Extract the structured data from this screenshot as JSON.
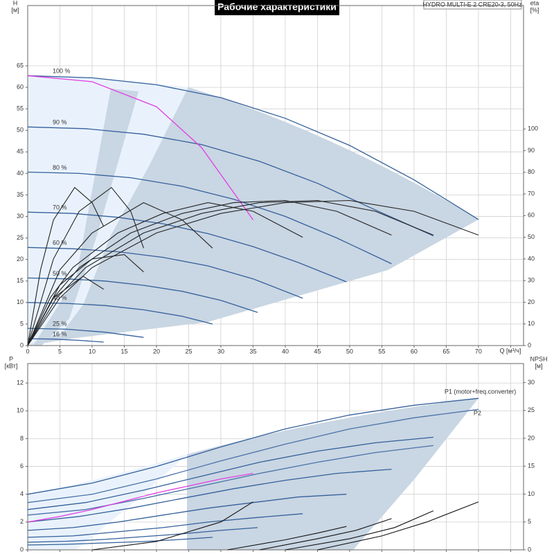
{
  "chart_data": [
    {
      "type": "line",
      "title": "Рабочие характеристики",
      "subtitle": "HYDRO MULTI-E 2 CRE20-3, 50Hz",
      "ylabel": "H",
      "yunit": "[м]",
      "y2label": "eta",
      "y2unit": "[%]",
      "xlabel": "Q [м³/ч]",
      "xlim": [
        0,
        77
      ],
      "xticks": [
        0,
        5,
        10,
        15,
        20,
        25,
        30,
        35,
        40,
        45,
        50,
        55,
        60,
        65,
        70,
        75
      ],
      "xtick_labels": true,
      "ylim": [
        0,
        79
      ],
      "yticks": [
        0,
        5,
        10,
        15,
        20,
        25,
        30,
        35,
        40,
        45,
        50,
        55,
        60,
        65
      ],
      "y2lim": [
        0,
        157
      ],
      "y2ticks": [
        0,
        10,
        20,
        30,
        40,
        50,
        60,
        70,
        80,
        90,
        100
      ],
      "grid": true,
      "series": [
        {
          "name": "100 %",
          "label_at": "start",
          "color": "#34609a",
          "x": [
            0,
            10,
            20,
            30,
            40,
            50,
            60,
            70
          ],
          "values": [
            62.7,
            62.2,
            60.6,
            57.6,
            52.8,
            46.5,
            38.5,
            29.3
          ]
        },
        {
          "name": "90 %",
          "label_at": "start",
          "color": "#34609a",
          "x": [
            0,
            9,
            18,
            27,
            36,
            45,
            54,
            63
          ],
          "values": [
            50.8,
            50.4,
            49.1,
            46.7,
            42.8,
            37.7,
            31.5,
            25.5
          ]
        },
        {
          "name": "80 %",
          "label_at": "start",
          "color": "#34609a",
          "x": [
            0,
            8,
            16,
            24,
            32,
            40,
            48,
            56.5
          ],
          "values": [
            40.3,
            40,
            39,
            37,
            34,
            30,
            25,
            19
          ]
        },
        {
          "name": "70 %",
          "label_at": "start",
          "color": "#34609a",
          "x": [
            0,
            7,
            14,
            21,
            28,
            35,
            42,
            49.5
          ],
          "values": [
            31,
            30.7,
            29.8,
            28.3,
            26,
            23,
            19.3,
            14.8
          ]
        },
        {
          "name": "60 %",
          "label_at": "start",
          "color": "#34609a",
          "x": [
            0,
            7,
            14,
            21,
            28,
            35,
            42.7
          ],
          "values": [
            22.8,
            22.5,
            21.8,
            20.5,
            18.5,
            15.5,
            11
          ]
        },
        {
          "name": "50 %",
          "label_at": "start",
          "color": "#34609a",
          "x": [
            0,
            6,
            12,
            18,
            24,
            30,
            35.7
          ],
          "values": [
            15.7,
            15.5,
            15,
            14,
            12.6,
            10.5,
            7.7
          ]
        },
        {
          "name": "40 %",
          "label_at": "start",
          "color": "#34609a",
          "x": [
            0,
            6,
            12,
            18,
            24,
            28.7
          ],
          "values": [
            10,
            9.8,
            9.3,
            8.3,
            6.8,
            5
          ]
        },
        {
          "name": "25 %",
          "label_at": "start",
          "color": "#34609a",
          "x": [
            0,
            6,
            12,
            18
          ],
          "values": [
            4,
            3.8,
            3.1,
            1.9
          ]
        },
        {
          "name": "16 %",
          "label_at": "start",
          "color": "#34609a",
          "x": [
            0,
            4,
            8,
            11.8
          ],
          "values": [
            1.6,
            1.5,
            1.2,
            0.8
          ]
        },
        {
          "color": "#e23ee2",
          "x": [
            0,
            10,
            20,
            27,
            35
          ],
          "values": [
            62.7,
            61.3,
            55.5,
            46,
            29.2
          ]
        },
        {
          "color": "#222222",
          "axis": "y2",
          "x": [
            0,
            5,
            10,
            20,
            30,
            40,
            50,
            60,
            70
          ],
          "values": [
            0,
            22,
            36,
            52,
            61,
            66,
            67,
            62,
            51
          ]
        },
        {
          "color": "#222222",
          "axis": "y2",
          "x": [
            0,
            4.5,
            9,
            18,
            27,
            36,
            45,
            54,
            63
          ],
          "values": [
            0,
            22,
            36,
            52,
            61,
            66,
            67,
            62,
            51
          ]
        },
        {
          "color": "#222222",
          "axis": "y2",
          "x": [
            0,
            4,
            8,
            16,
            24,
            32,
            40,
            48,
            56.5
          ],
          "values": [
            0,
            22,
            36,
            52,
            61,
            66,
            67,
            62,
            51
          ]
        },
        {
          "color": "#222222",
          "axis": "y2",
          "x": [
            0,
            3.5,
            7,
            14,
            21,
            28,
            35,
            42.7
          ],
          "values": [
            0,
            22,
            36,
            52,
            61,
            66,
            62,
            50
          ]
        },
        {
          "color": "#222222",
          "axis": "y2",
          "x": [
            0,
            5,
            10,
            18,
            24,
            28.7
          ],
          "values": [
            0,
            35,
            52,
            66,
            58,
            45
          ]
        },
        {
          "color": "#222222",
          "axis": "y2",
          "x": [
            0,
            2,
            4,
            7.3,
            10,
            11.8
          ],
          "values": [
            0,
            35,
            58,
            73,
            66,
            55
          ]
        },
        {
          "color": "#222222",
          "axis": "y2",
          "x": [
            0,
            4,
            8,
            13,
            16,
            18
          ],
          "values": [
            0,
            40,
            62,
            73,
            62,
            45
          ]
        },
        {
          "color": "#222222",
          "axis": "y2",
          "x": [
            0,
            5,
            10,
            15,
            18
          ],
          "values": [
            0,
            28,
            40,
            42,
            34
          ]
        },
        {
          "color": "#222222",
          "axis": "y2",
          "x": [
            0,
            4,
            8.6,
            11.8
          ],
          "values": [
            0,
            22,
            32,
            26
          ]
        }
      ]
    },
    {
      "type": "line",
      "ylabel": "P",
      "yunit": "[кВт]",
      "y2label": "NPSH",
      "y2unit": "[м]",
      "xlim": [
        0,
        77
      ],
      "xticks": [
        0,
        5,
        10,
        15,
        20,
        25,
        30,
        35,
        40,
        45,
        50,
        55,
        60,
        65,
        70,
        75
      ],
      "xtick_labels": false,
      "ylim": [
        0,
        13.4
      ],
      "yticks": [
        0,
        2,
        4,
        6,
        8,
        10,
        12
      ],
      "y2lim": [
        0,
        33.4
      ],
      "y2ticks": [
        0,
        5,
        10,
        15,
        20,
        25,
        30
      ],
      "grid": true,
      "series": [
        {
          "name": "P1 (motor+freq.converter)",
          "label_at": "end-above",
          "color": "#34609a",
          "x": [
            0,
            10,
            20,
            30,
            40,
            50,
            60,
            70
          ],
          "values": [
            4,
            4.8,
            6,
            7.4,
            8.7,
            9.7,
            10.4,
            10.9
          ]
        },
        {
          "name": "P2",
          "label_at": "end-below",
          "color": "#4a72a8",
          "x": [
            0,
            10,
            20,
            30,
            40,
            50,
            60,
            70
          ],
          "values": [
            3.4,
            4,
            5.1,
            6.4,
            7.6,
            8.7,
            9.5,
            10.1
          ]
        },
        {
          "color": "#34609a",
          "x": [
            0,
            9,
            18,
            27,
            36,
            45,
            54,
            63
          ],
          "values": [
            2.9,
            3.4,
            4.3,
            5.3,
            6.3,
            7.1,
            7.7,
            8.1
          ]
        },
        {
          "color": "#4a72a8",
          "x": [
            0,
            9,
            18,
            27,
            36,
            45,
            54,
            63
          ],
          "values": [
            2.5,
            2.9,
            3.7,
            4.6,
            5.5,
            6.3,
            7,
            7.5
          ]
        },
        {
          "color": "#34609a",
          "x": [
            0,
            8,
            16,
            24,
            32,
            40,
            48,
            56.5
          ],
          "values": [
            2,
            2.4,
            3,
            3.7,
            4.4,
            5,
            5.5,
            5.8
          ]
        },
        {
          "color": "#34609a",
          "x": [
            0,
            7,
            14,
            21,
            28,
            35,
            42,
            49.5
          ],
          "values": [
            1.4,
            1.6,
            2,
            2.5,
            3,
            3.4,
            3.8,
            4
          ]
        },
        {
          "color": "#34609a",
          "x": [
            0,
            7,
            14,
            21,
            28,
            35,
            42.7
          ],
          "values": [
            0.9,
            1,
            1.3,
            1.6,
            2,
            2.3,
            2.6
          ]
        },
        {
          "color": "#34609a",
          "x": [
            0,
            6,
            12,
            18,
            24,
            30,
            35.7
          ],
          "values": [
            0.55,
            0.62,
            0.75,
            0.95,
            1.15,
            1.4,
            1.6
          ]
        },
        {
          "color": "#34609a",
          "x": [
            0,
            6,
            12,
            18,
            24,
            28.7
          ],
          "values": [
            0.35,
            0.4,
            0.5,
            0.6,
            0.75,
            0.9
          ]
        },
        {
          "color": "#e23ee2",
          "x": [
            0,
            5,
            10,
            15,
            20,
            25,
            30,
            35
          ],
          "values": [
            2,
            2.4,
            2.9,
            3.5,
            4.1,
            4.6,
            5.1,
            5.5
          ]
        },
        {
          "color": "#111111",
          "axis": "y2",
          "x": [
            45,
            55,
            62,
            70
          ],
          "values": [
            0,
            2.5,
            5,
            8.6
          ]
        },
        {
          "color": "#111111",
          "axis": "y2",
          "x": [
            40,
            50,
            57,
            63
          ],
          "values": [
            0,
            2,
            4,
            7
          ]
        },
        {
          "color": "#111111",
          "axis": "y2",
          "x": [
            36,
            45,
            51,
            56.5
          ],
          "values": [
            0,
            2,
            3.5,
            5.6
          ]
        },
        {
          "color": "#111111",
          "axis": "y2",
          "x": [
            31,
            40,
            45,
            49.5
          ],
          "values": [
            0,
            1.8,
            3,
            4.2
          ]
        },
        {
          "color": "#111111",
          "axis": "y2",
          "x": [
            10,
            20,
            30,
            35
          ],
          "values": [
            0,
            1.5,
            5,
            8.6
          ]
        }
      ]
    }
  ]
}
